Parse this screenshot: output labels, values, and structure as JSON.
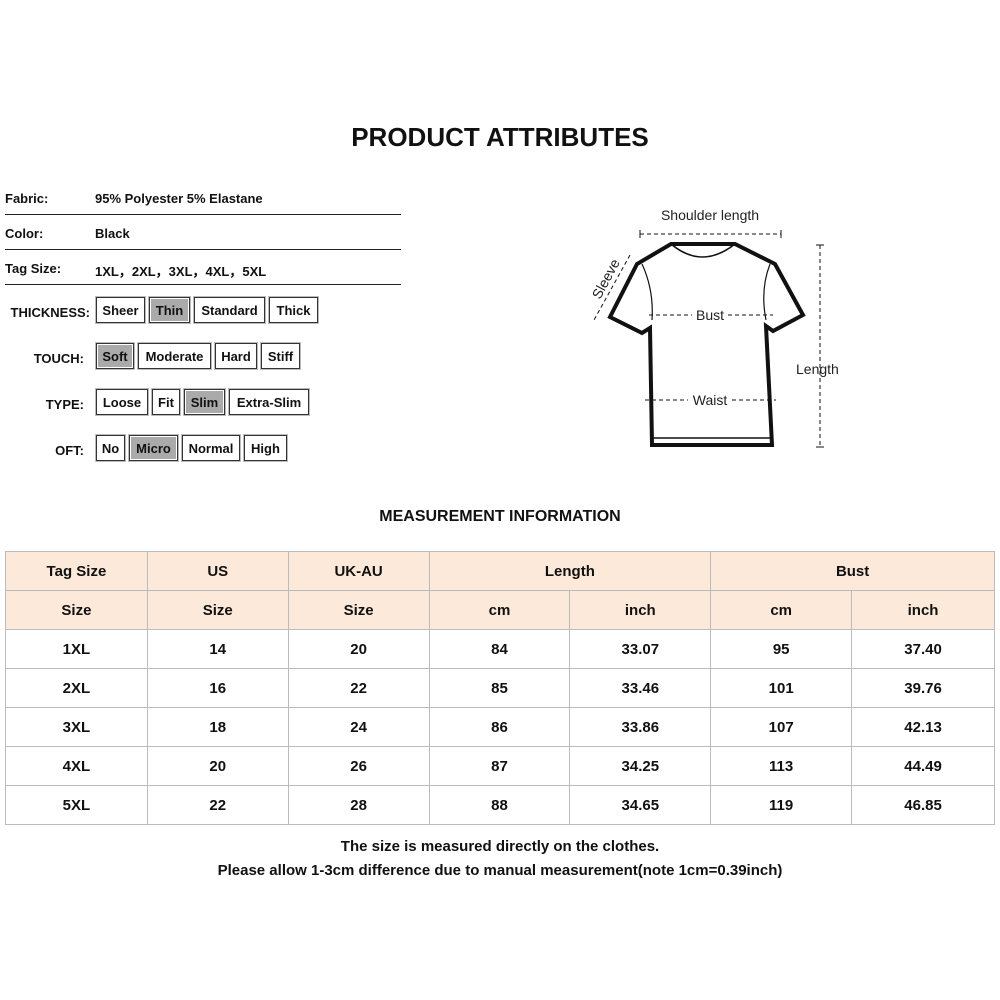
{
  "title": "PRODUCT ATTRIBUTES",
  "attributes": [
    {
      "label": "Fabric:",
      "value": "95% Polyester 5% Elastane"
    },
    {
      "label": "Color:",
      "value": "Black"
    },
    {
      "label": "Tag Size:",
      "value": "1XL，2XL，3XL，4XL，5XL"
    }
  ],
  "options": {
    "thickness": {
      "label": "THICKNESS:",
      "items": [
        "Sheer",
        "Thin",
        "Standard",
        "Thick"
      ],
      "selected": "Thin"
    },
    "touch": {
      "label": "TOUCH:",
      "items": [
        "Soft",
        "Moderate",
        "Hard",
        "Stiff"
      ],
      "selected": "Soft"
    },
    "type": {
      "label": "TYPE:",
      "items": [
        "Loose",
        "Fit",
        "Slim",
        "Extra-Slim"
      ],
      "selected": "Slim"
    },
    "oft": {
      "label": "OFT:",
      "items": [
        "No",
        "Micro",
        "Normal",
        "High"
      ],
      "selected": "Micro"
    }
  },
  "diagram": {
    "shoulder": "Shoulder length",
    "sleeve": "Sleeve",
    "bust": "Bust",
    "waist": "Waist",
    "length": "Length"
  },
  "measurement": {
    "title": "MEASUREMENT INFORMATION",
    "header1": [
      "Tag Size",
      "US",
      "UK-AU",
      "Length",
      "Bust"
    ],
    "header2": [
      "Size",
      "Size",
      "Size",
      "cm",
      "inch",
      "cm",
      "inch"
    ],
    "rows": [
      [
        "1XL",
        "14",
        "20",
        "84",
        "33.07",
        "95",
        "37.40"
      ],
      [
        "2XL",
        "16",
        "22",
        "85",
        "33.46",
        "101",
        "39.76"
      ],
      [
        "3XL",
        "18",
        "24",
        "86",
        "33.86",
        "107",
        "42.13"
      ],
      [
        "4XL",
        "20",
        "26",
        "87",
        "34.25",
        "113",
        "44.49"
      ],
      [
        "5XL",
        "22",
        "28",
        "88",
        "34.65",
        "119",
        "46.85"
      ]
    ],
    "header_bg": "#fde9d9"
  },
  "notes": [
    "The size is measured directly on the clothes.",
    "Please allow 1-3cm difference due to manual measurement(note 1cm=0.39inch)"
  ]
}
